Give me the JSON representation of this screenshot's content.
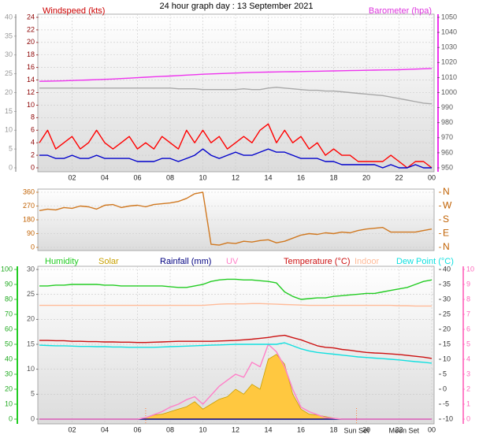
{
  "title": "24 hour graph day : 13 September 2021",
  "chart_data": [
    {
      "type": "line",
      "ylabel": "Windspeed (kts)",
      "y2label": "Barometer (hpa)",
      "grid": true,
      "x": [
        0,
        0.5,
        1,
        1.5,
        2,
        2.5,
        3,
        3.5,
        4,
        4.5,
        5,
        5.5,
        6,
        6.5,
        7,
        7.5,
        8,
        8.5,
        9,
        9.5,
        10,
        10.5,
        11,
        11.5,
        12,
        12.5,
        13,
        13.5,
        14,
        14.5,
        15,
        15.5,
        16,
        16.5,
        17,
        17.5,
        18,
        18.5,
        19,
        19.5,
        20,
        20.5,
        21,
        21.5,
        22,
        22.5,
        23,
        23.5,
        24
      ],
      "xlim": [
        0,
        24
      ],
      "xticks": [
        {
          "value": 2,
          "label": "02"
        },
        {
          "value": 4,
          "label": "04"
        },
        {
          "value": 6,
          "label": "06"
        },
        {
          "value": 8,
          "label": "08"
        },
        10,
        12,
        14,
        16,
        18,
        20,
        22,
        {
          "value": 24,
          "label": "00"
        }
      ],
      "ylim": [
        0,
        24
      ],
      "yticks": [
        0,
        2,
        4,
        6,
        8,
        10,
        12,
        14,
        16,
        18,
        20,
        22,
        24
      ],
      "y2lim": [
        950,
        1050
      ],
      "y2ticks": [
        950,
        960,
        970,
        980,
        990,
        1000,
        1010,
        1020,
        1030,
        1040,
        1050
      ],
      "y3lim": [
        0,
        40
      ],
      "y3ticks": [
        0,
        5,
        10,
        15,
        20,
        25,
        30,
        35,
        40
      ],
      "series": [
        {
          "color": "#a8a8a8",
          "axis": "y2",
          "values": [
            1003,
            1003,
            1003,
            1003,
            1003,
            1003,
            1003,
            1003,
            1003,
            1003,
            1003,
            1003,
            1003,
            1003,
            1003,
            1003,
            1003,
            1002.5,
            1002.5,
            1002.5,
            1002,
            1002,
            1002,
            1002,
            1002,
            1002.5,
            1002,
            1002,
            1003,
            1003.5,
            1003,
            1002.5,
            1002,
            1001.5,
            1001.5,
            1001,
            1001,
            1000.5,
            1000,
            999.5,
            999,
            998.5,
            998,
            997,
            996,
            995,
            994,
            993,
            992.5
          ]
        },
        {
          "color": "#ee33ee",
          "axis": "y2",
          "values": [
            1007.5,
            1007.6,
            1007.7,
            1007.8,
            1008,
            1008.2,
            1008.4,
            1008.6,
            1008.8,
            1009,
            1009.3,
            1009.6,
            1009.9,
            1010.2,
            1010.5,
            1010.8,
            1011,
            1011.3,
            1011.6,
            1011.9,
            1012.2,
            1012.4,
            1012.6,
            1012.8,
            1013,
            1013.2,
            1013.4,
            1013.5,
            1013.6,
            1013.7,
            1013.8,
            1013.9,
            1014,
            1014.1,
            1014.2,
            1014.3,
            1014.4,
            1014.5,
            1014.6,
            1014.7,
            1014.8,
            1014.9,
            1015,
            1015.1,
            1015.2,
            1015.4,
            1015.6,
            1015.8,
            1016
          ]
        },
        {
          "color": "#ff0000",
          "values": [
            4,
            6,
            3,
            4,
            5,
            3,
            4,
            6,
            4,
            3,
            4,
            5,
            3,
            4,
            3,
            5,
            4,
            3,
            6,
            4,
            6,
            4,
            5,
            3,
            4,
            5,
            4,
            6,
            7,
            4,
            6,
            4,
            5,
            3,
            4,
            2,
            3,
            2,
            2,
            1,
            1,
            1,
            1,
            2,
            1,
            0,
            1,
            1,
            0
          ]
        },
        {
          "color": "#0000cc",
          "values": [
            2,
            2,
            1.5,
            1.5,
            2,
            1.5,
            1.5,
            2,
            1.5,
            1.5,
            1.5,
            1.5,
            1,
            1,
            1,
            1.5,
            1.5,
            1,
            1.5,
            2,
            3,
            2,
            1.5,
            2,
            2.5,
            2,
            2,
            2.5,
            3,
            2.5,
            2.5,
            2,
            1.5,
            1.5,
            1.5,
            1,
            1,
            0.5,
            0.5,
            0.5,
            0.5,
            0.5,
            0,
            0.5,
            0,
            0,
            0.5,
            0,
            0
          ]
        }
      ]
    },
    {
      "type": "line",
      "grid": true,
      "x": [
        0,
        0.5,
        1,
        1.5,
        2,
        2.5,
        3,
        3.5,
        4,
        4.5,
        5,
        5.5,
        6,
        6.5,
        7,
        7.5,
        8,
        8.5,
        9,
        9.5,
        10,
        10.5,
        11,
        11.5,
        12,
        12.5,
        13,
        13.5,
        14,
        14.5,
        15,
        15.5,
        16,
        16.5,
        17,
        17.5,
        18,
        18.5,
        19,
        19.5,
        20,
        20.5,
        21,
        21.5,
        22,
        22.5,
        23,
        23.5,
        24
      ],
      "xlim": [
        0,
        24
      ],
      "ylim": [
        0,
        360
      ],
      "yticks": [
        0,
        90,
        180,
        270,
        360
      ],
      "y2lim": [
        0,
        360
      ],
      "y2ticks": [
        {
          "value": 0,
          "label": "N"
        },
        {
          "value": 90,
          "label": "E"
        },
        {
          "value": 180,
          "label": "S"
        },
        {
          "value": 270,
          "label": "W"
        },
        {
          "value": 360,
          "label": "N"
        }
      ],
      "series": [
        {
          "color": "#d07820",
          "values": [
            240,
            250,
            245,
            260,
            255,
            270,
            265,
            250,
            275,
            280,
            260,
            270,
            275,
            265,
            280,
            285,
            290,
            300,
            320,
            350,
            360,
            20,
            15,
            30,
            25,
            40,
            35,
            45,
            50,
            30,
            40,
            60,
            80,
            90,
            85,
            95,
            90,
            100,
            95,
            110,
            120,
            125,
            130,
            100,
            100,
            100,
            100,
            110,
            120
          ]
        }
      ]
    },
    {
      "type": "line",
      "grid": true,
      "x": [
        0,
        0.5,
        1,
        1.5,
        2,
        2.5,
        3,
        3.5,
        4,
        4.5,
        5,
        5.5,
        6,
        6.5,
        7,
        7.5,
        8,
        8.5,
        9,
        9.5,
        10,
        10.5,
        11,
        11.5,
        12,
        12.5,
        13,
        13.5,
        14,
        14.5,
        15,
        15.5,
        16,
        16.5,
        17,
        17.5,
        18,
        18.5,
        19,
        19.5,
        20,
        20.5,
        21,
        21.5,
        22,
        22.5,
        23,
        23.5,
        24
      ],
      "xlim": [
        0,
        24
      ],
      "xticks": [
        {
          "value": 2,
          "label": "02"
        },
        {
          "value": 4,
          "label": "04"
        },
        {
          "value": 6,
          "label": "06"
        },
        {
          "value": 8,
          "label": "08"
        },
        10,
        12,
        14,
        16,
        18,
        20,
        22,
        {
          "value": 24,
          "label": "00"
        }
      ],
      "ylim": [
        0,
        30
      ],
      "yticks": [
        0,
        5,
        10,
        15,
        20,
        25,
        30
      ],
      "y2lim": [
        -10,
        40
      ],
      "y2ticks": [
        -10,
        -5,
        0,
        5,
        10,
        15,
        20,
        25,
        30,
        35,
        40
      ],
      "y3lim": [
        0,
        100
      ],
      "y3ticks": [
        0,
        10,
        20,
        30,
        40,
        50,
        60,
        70,
        80,
        90,
        100
      ],
      "y4lim": [
        0,
        10
      ],
      "y4ticks": [
        0,
        1,
        2,
        3,
        4,
        5,
        6,
        7,
        8,
        9,
        10
      ],
      "events": [
        {
          "x": 6.5
        },
        {
          "x": 19.4,
          "label": "Sun Set"
        },
        {
          "x": 22.3,
          "label": "Moon Set"
        }
      ],
      "series": [
        {
          "name": "Humidity",
          "color": "#22cc22",
          "axis": "y3",
          "values": [
            89,
            89,
            89.5,
            89.5,
            90,
            90,
            90,
            90,
            89.5,
            89.5,
            89,
            89,
            89,
            89,
            89,
            89,
            88.5,
            88,
            88,
            89,
            90,
            92,
            93,
            93.5,
            93.5,
            93,
            93,
            92.5,
            92,
            91,
            85,
            82,
            80,
            80.5,
            81,
            81,
            82,
            82.5,
            83,
            83.5,
            84,
            84,
            85,
            86,
            87,
            88,
            90,
            92,
            93
          ]
        },
        {
          "name": "Solar",
          "color": "#c8a000",
          "fill": "#ffc840",
          "values": [
            0,
            0,
            0,
            0,
            0,
            0,
            0,
            0,
            0,
            0,
            0,
            0,
            0,
            0.3,
            0.8,
            1,
            1.5,
            2,
            2.5,
            3.5,
            2,
            3,
            4,
            4.5,
            6,
            5,
            7,
            6,
            12,
            13,
            11,
            5,
            2,
            1,
            0.8,
            0.5,
            0.2,
            0,
            0,
            0,
            0,
            0,
            0,
            0,
            0,
            0,
            0,
            0,
            0
          ]
        },
        {
          "name": "Rainfall (mm)",
          "color": "#000080",
          "values": [
            0,
            0,
            0,
            0,
            0,
            0,
            0,
            0,
            0,
            0,
            0,
            0,
            0,
            0,
            0,
            0,
            0,
            0,
            0,
            0,
            0,
            0,
            0,
            0,
            0,
            0,
            0,
            0,
            0,
            0,
            0,
            0,
            0,
            0,
            0,
            0,
            0,
            0,
            0,
            0,
            0,
            0,
            0,
            0,
            0,
            0,
            0,
            0,
            0
          ]
        },
        {
          "name": "UV",
          "color": "#ff80c8",
          "axis": "y4",
          "values": [
            0,
            0,
            0,
            0,
            0,
            0,
            0,
            0,
            0,
            0,
            0,
            0,
            0,
            0.1,
            0.3,
            0.5,
            0.8,
            1,
            1.3,
            1.5,
            1,
            1.6,
            2.2,
            2.6,
            3,
            2.8,
            3.8,
            3.5,
            5,
            4.5,
            3.5,
            2,
            0.8,
            0.5,
            0.3,
            0.1,
            0.05,
            0,
            0,
            0,
            0,
            0,
            0,
            0,
            0,
            0,
            0,
            0,
            0
          ]
        },
        {
          "name": "Temperature (°C)",
          "color": "#cc1111",
          "axis": "y2",
          "values": [
            16.3,
            16.3,
            16.2,
            16.2,
            16,
            16,
            15.9,
            15.9,
            15.8,
            15.8,
            15.7,
            15.7,
            15.6,
            15.6,
            15.7,
            15.8,
            15.9,
            16,
            16,
            16,
            16,
            16,
            16.1,
            16.2,
            16.3,
            16.5,
            16.7,
            17,
            17.3,
            17.7,
            18,
            17.2,
            16.5,
            15.5,
            14.5,
            14,
            13.8,
            13.3,
            13,
            12.6,
            12.3,
            12.1,
            12,
            11.8,
            11.6,
            11.3,
            11,
            10.7,
            10.3
          ]
        },
        {
          "name": "Indoor",
          "color": "#ffbb99",
          "axis": "y2",
          "values": [
            28,
            28,
            28,
            28,
            28,
            28,
            28,
            28,
            28,
            28,
            28,
            28,
            28,
            28,
            28,
            28,
            28,
            28,
            28,
            28,
            28,
            28.2,
            28.4,
            28.5,
            28.5,
            28.5,
            28.6,
            28.6,
            28.5,
            28.4,
            28.3,
            28.2,
            28.1,
            28,
            28,
            28,
            28,
            28,
            28,
            28,
            28,
            28,
            28,
            28,
            27.9,
            27.9,
            27.8,
            27.8,
            27.8
          ]
        },
        {
          "name": "Dew Point (°C)",
          "color": "#11e0e0",
          "axis": "y2",
          "values": [
            14.7,
            14.6,
            14.5,
            14.5,
            14.4,
            14.3,
            14.3,
            14.2,
            14.2,
            14.1,
            14.1,
            14,
            14,
            14,
            14,
            14.1,
            14.2,
            14.3,
            14.4,
            14.5,
            14.6,
            14.7,
            14.8,
            14.9,
            15,
            15,
            15,
            15,
            15,
            15,
            15.5,
            14.5,
            13.5,
            12.8,
            12.3,
            12,
            11.7,
            11.4,
            11.1,
            10.8,
            10.6,
            10.4,
            10.2,
            10,
            9.8,
            9.5,
            9.2,
            9,
            8.7
          ]
        }
      ]
    }
  ]
}
